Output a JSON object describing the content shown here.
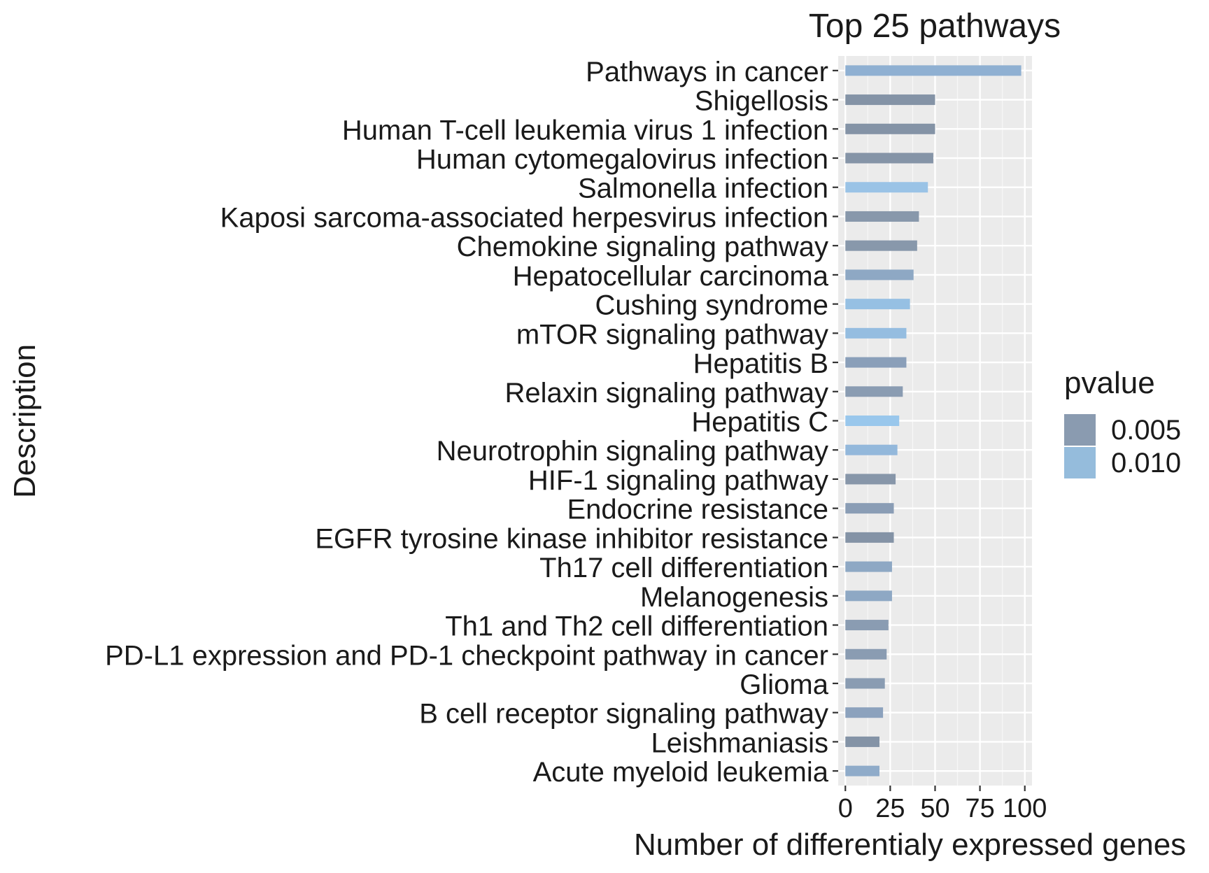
{
  "chart_data": {
    "type": "bar",
    "orientation": "horizontal",
    "title": "Top 25 pathways",
    "xlabel": "Number of differentialy expressed genes",
    "ylabel": "Description",
    "xlim": [
      -4,
      104
    ],
    "xticks": [
      "0",
      "25",
      "50",
      "75",
      "100"
    ],
    "xtick_values": [
      0,
      25,
      50,
      75,
      100
    ],
    "grid": true,
    "legend_title": "pvalue",
    "legend_position": "right",
    "legend_items": [
      {
        "label": "0.005",
        "color": "#8a9bb0"
      },
      {
        "label": "0.010",
        "color": "#95bcdc"
      }
    ],
    "categories": [
      "Pathways in cancer",
      "Shigellosis",
      "Human T-cell leukemia virus 1 infection",
      "Human cytomegalovirus infection",
      "Salmonella infection",
      "Kaposi sarcoma-associated herpesvirus infection",
      "Chemokine signaling pathway",
      "Hepatocellular carcinoma",
      "Cushing syndrome",
      "mTOR signaling pathway",
      "Hepatitis B",
      "Relaxin signaling pathway",
      "Hepatitis C",
      "Neurotrophin signaling pathway",
      "HIF-1 signaling pathway",
      "Endocrine resistance",
      "EGFR tyrosine kinase inhibitor resistance",
      "Th17 cell differentiation",
      "Melanogenesis",
      "Th1 and Th2 cell differentiation",
      "PD-L1 expression and PD-1 checkpoint pathway in cancer",
      "Glioma",
      "B cell receptor signaling pathway",
      "Leishmaniasis",
      "Acute myeloid leukemia"
    ],
    "values": [
      98,
      50,
      50,
      49,
      46,
      41,
      40,
      38,
      36,
      34,
      34,
      32,
      30,
      29,
      28,
      27,
      27,
      26,
      26,
      24,
      23,
      22,
      21,
      19,
      19
    ],
    "colors": [
      "#8fb0d2",
      "#8493a6",
      "#8493a6",
      "#8594a7",
      "#9ac3e6",
      "#8898ab",
      "#8898ab",
      "#8ea8c4",
      "#96c0e3",
      "#95bde0",
      "#8a9fb9",
      "#8a9cb2",
      "#99c7ec",
      "#93b8db",
      "#8796a9",
      "#8a9db5",
      "#8493a6",
      "#8ea8c4",
      "#8ea8c4",
      "#8a9cb2",
      "#8a9cb2",
      "#8a9cb2",
      "#8ca2bd",
      "#8493a6",
      "#8fabc9"
    ]
  }
}
